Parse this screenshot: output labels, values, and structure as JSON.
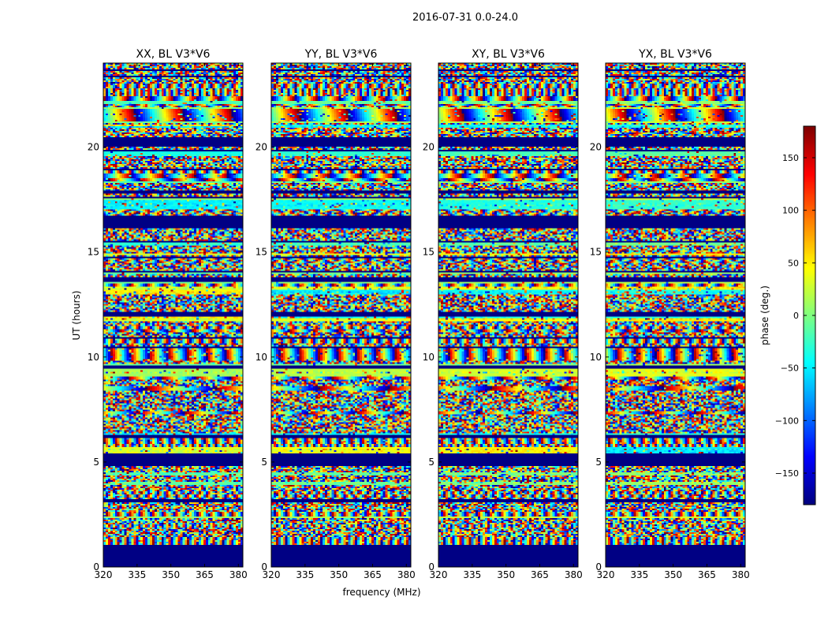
{
  "suptitle": "2016-07-31 0.0-24.0",
  "chart_data": {
    "type": "heatmap",
    "suptitle": "2016-07-31 0.0-24.0",
    "xlabel": "frequency (MHz)",
    "ylabel": "UT (hours)",
    "xlim": [
      320,
      382
    ],
    "ylim": [
      0,
      24
    ],
    "xticks": [
      "320",
      "335",
      "350",
      "365",
      "380"
    ],
    "xtick_values": [
      320,
      335,
      350,
      365,
      380
    ],
    "yticks": [
      "0",
      "5",
      "10",
      "15",
      "20"
    ],
    "ytick_values": [
      0,
      5,
      10,
      15,
      20
    ],
    "panels": [
      {
        "title": "XX, BL V3*V6"
      },
      {
        "title": "YY, BL V3*V6"
      },
      {
        "title": "XY, BL V3*V6"
      },
      {
        "title": "YX, BL V3*V6"
      }
    ],
    "colorbar": {
      "label": "phase (deg.)",
      "range": [
        -180,
        180
      ],
      "ticks": [
        "150",
        "100",
        "50",
        "0",
        "−50",
        "−100",
        "−150"
      ],
      "tick_values": [
        150,
        100,
        50,
        0,
        -50,
        -100,
        -150
      ],
      "colormap": "jet"
    },
    "flagged_ut_ranges": [
      [
        0,
        1.05
      ],
      [
        20.05,
        20.45
      ],
      [
        17.8,
        17.9
      ],
      [
        15.45,
        15.5
      ],
      [
        13.75,
        13.8
      ],
      [
        12.65,
        12.7
      ]
    ],
    "data_ut_range": [
      1.05,
      24
    ]
  }
}
